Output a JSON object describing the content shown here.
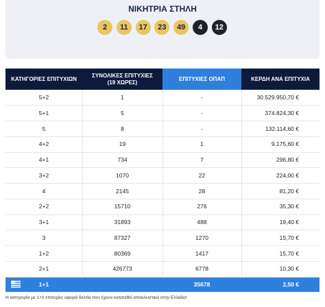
{
  "header": {
    "title": "ΝΙΚΗΤΡΙΑ ΣΤΗΛΗ",
    "numbers": [
      "2",
      "11",
      "17",
      "23",
      "49"
    ],
    "stars": [
      "4",
      "12"
    ]
  },
  "table": {
    "columns": [
      "ΚΑΤΗΓΟΡΙΕΣ ΕΠΙΤΥΧΙΩΝ",
      [
        "ΣΥΝΟΛΙΚΕΣ ΕΠΙΤΥΧΙΕΣ",
        "(19 ΧΩΡΕΣ)"
      ],
      "ΕΠΙΤΥΧΙΕΣ ΟΠΑΠ",
      "ΚΕΡΔΗ ΑΝΑ ΕΠΙΤΥΧΙΑ"
    ],
    "rows": [
      [
        "5+2",
        "1",
        "-",
        "30.529.950,70 €"
      ],
      [
        "5+1",
        "5",
        "-",
        "374.824,30 €"
      ],
      [
        "5",
        "8",
        "-",
        "132.114,60 €"
      ],
      [
        "4+2",
        "19",
        "1",
        "9.175,60 €"
      ],
      [
        "4+1",
        "734",
        "7",
        "296,80 €"
      ],
      [
        "3+2",
        "1070",
        "22",
        "224,00 €"
      ],
      [
        "4",
        "2145",
        "28",
        "81,20 €"
      ],
      [
        "2+2",
        "15710",
        "276",
        "35,30 €"
      ],
      [
        "3+1",
        "31893",
        "488",
        "19,40 €"
      ],
      [
        "3",
        "87327",
        "1270",
        "15,70 €"
      ],
      [
        "1+2",
        "80369",
        "1417",
        "15,70 €"
      ],
      [
        "2+1",
        "426773",
        "6778",
        "10,30 €"
      ]
    ],
    "last_row": {
      "category": "1+1",
      "opap": "35678",
      "prize": "2,50 €"
    }
  },
  "footnote": "Η κατηγορία με 1+1 επιτυχίες αφορά δελτία που έχουν κατατεθεί αποκλειστικά στην Ελλάδα!"
}
